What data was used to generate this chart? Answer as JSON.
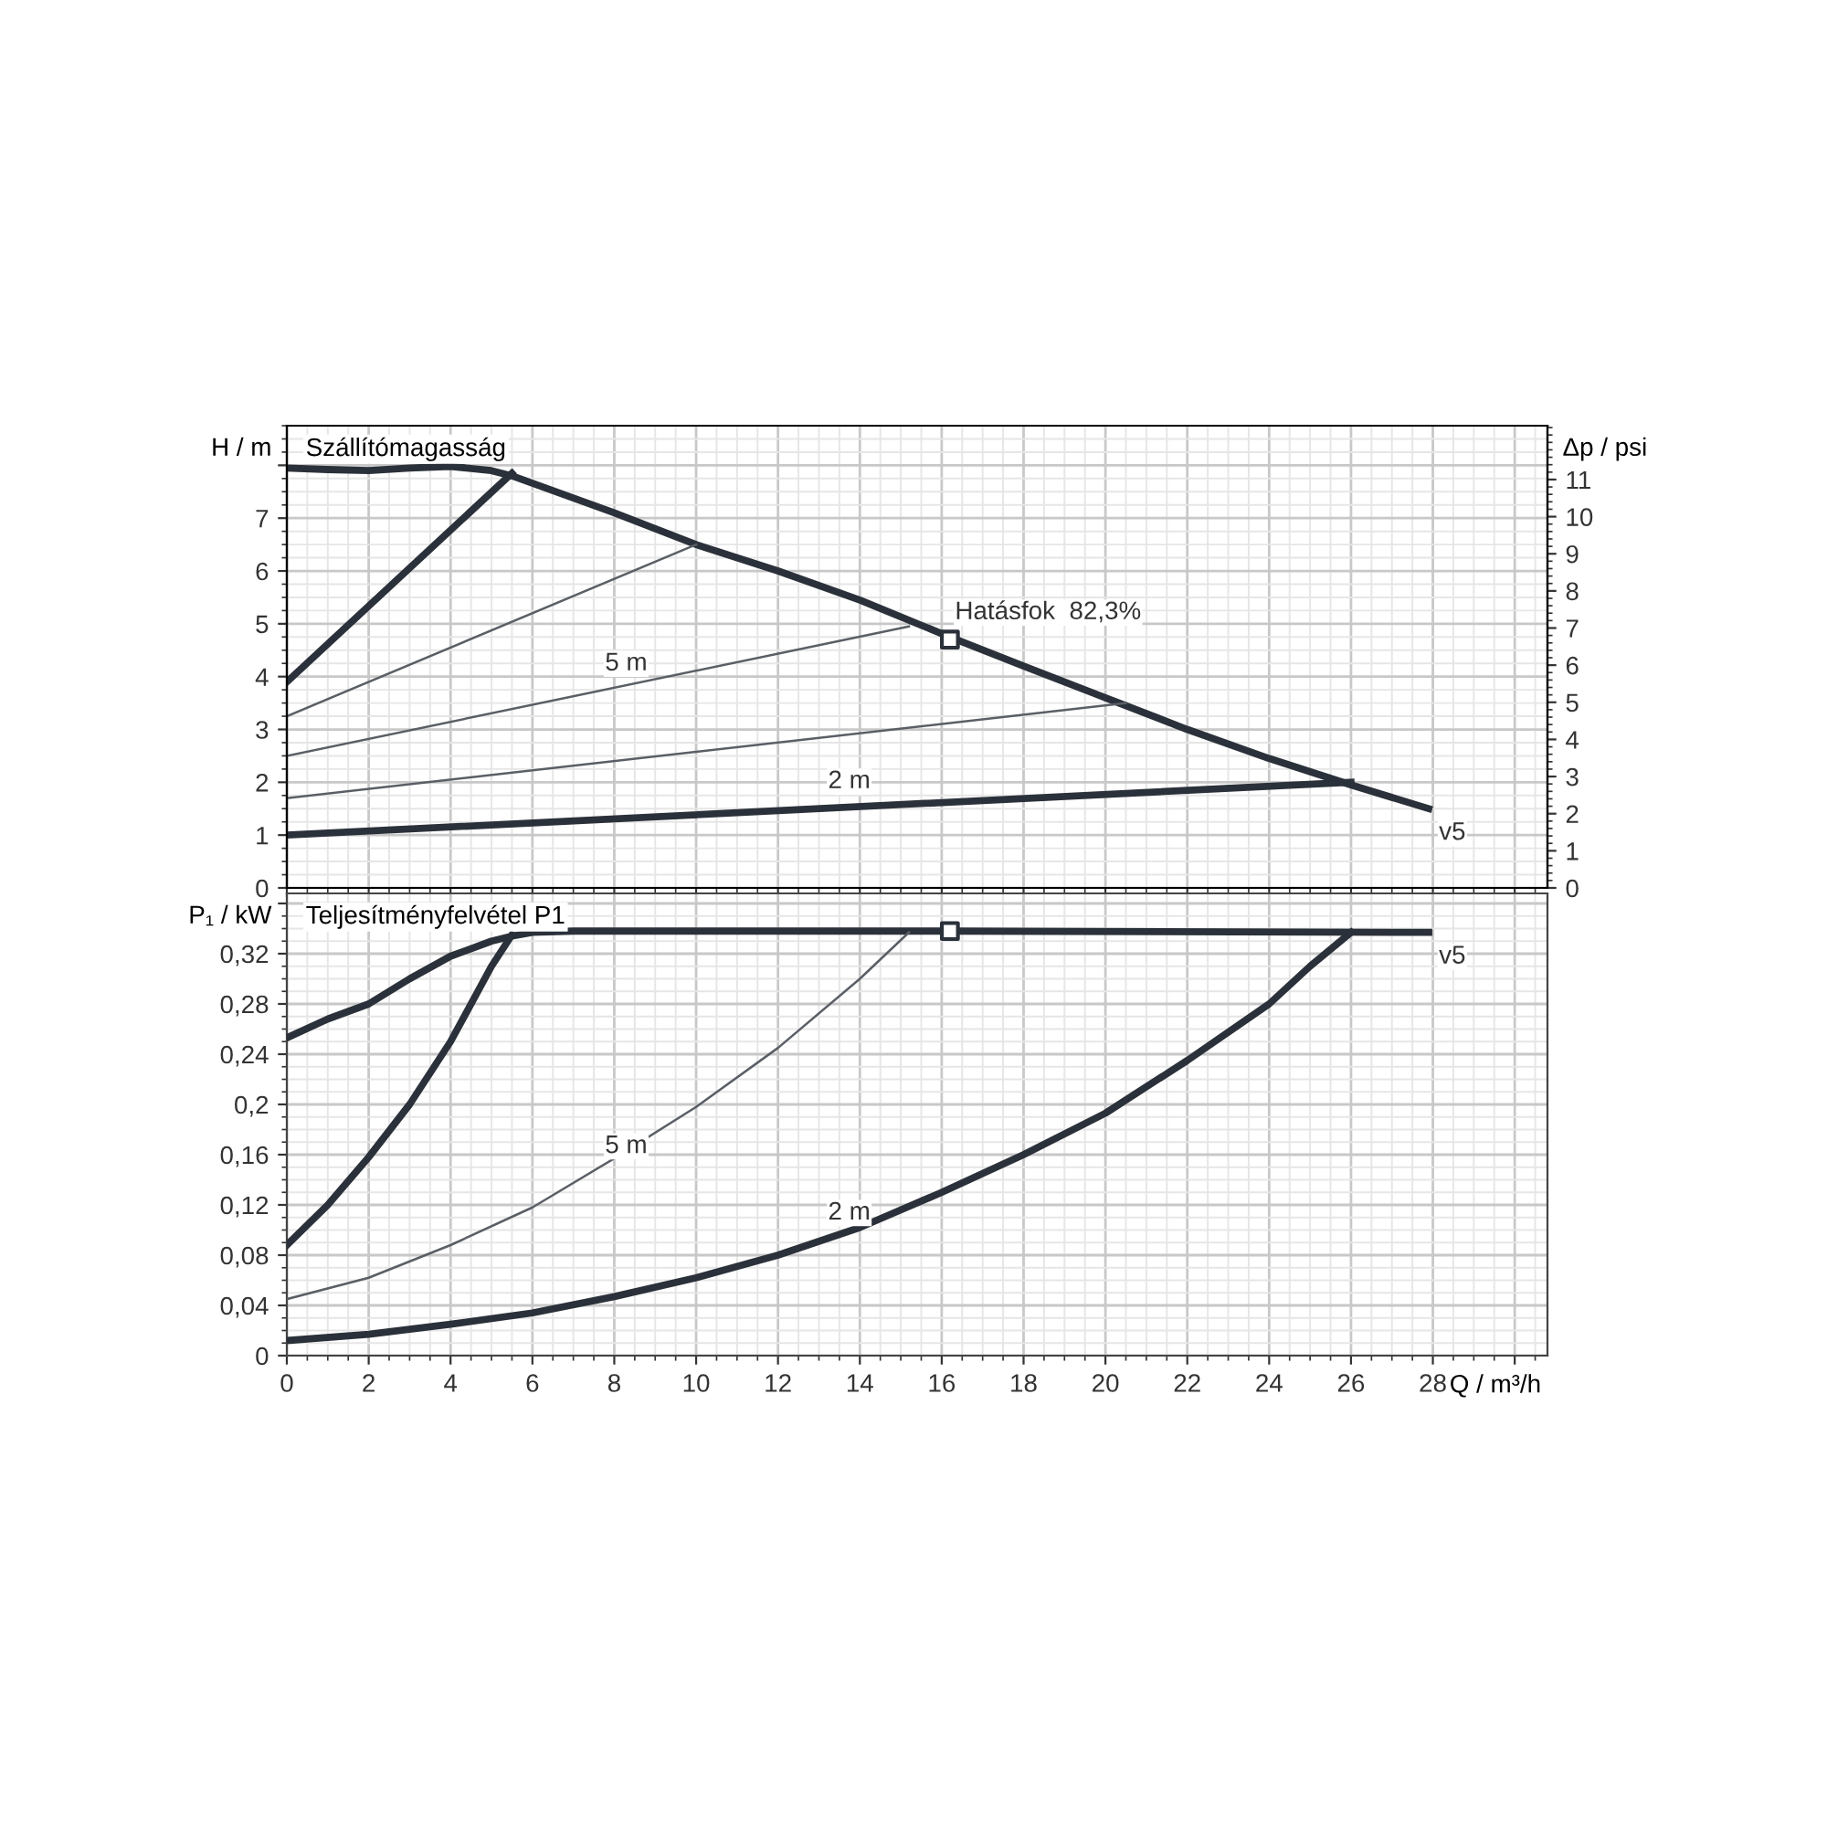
{
  "chart_data": [
    {
      "type": "line",
      "title": "Szállítómagasság",
      "ylabel": "H / m",
      "y2label": "Δp / psi",
      "grid": true,
      "tick_labels": "y",
      "xlim": [
        0,
        30.8
      ],
      "xticks": [
        0,
        2,
        4,
        6,
        8,
        10,
        12,
        14,
        16,
        18,
        20,
        22,
        24,
        26,
        28,
        {
          "value": 30,
          "label": null
        }
      ],
      "ylim": [
        0,
        8.75
      ],
      "yticks": [
        0,
        1,
        2,
        3,
        4,
        5,
        6,
        7,
        {
          "value": 8,
          "label": null
        }
      ],
      "y2lim": [
        0,
        12.45
      ],
      "y2ticks": [
        0,
        1,
        2,
        3,
        4,
        5,
        6,
        7,
        8,
        9,
        10,
        11
      ],
      "series": [
        {
          "color": "#2b313a",
          "x": [
            0,
            1,
            2,
            3,
            4,
            5,
            5.5,
            8,
            10,
            12,
            14,
            16.2,
            18,
            20,
            22,
            24,
            26,
            27.9
          ],
          "values": [
            7.95,
            7.92,
            7.9,
            7.95,
            7.98,
            7.9,
            7.8,
            7.1,
            6.5,
            6.0,
            5.45,
            4.75,
            4.2,
            3.6,
            3.0,
            2.45,
            1.95,
            1.5
          ]
        },
        {
          "color": "#2b313a",
          "x": [
            0,
            5.5
          ],
          "values": [
            3.9,
            7.85
          ]
        },
        {
          "color": "#5a5f66",
          "x": [
            0,
            10
          ],
          "values": [
            3.25,
            6.5
          ]
        },
        {
          "color": "#5a5f66",
          "x": [
            0,
            15.2
          ],
          "values": [
            2.5,
            4.95
          ]
        },
        {
          "color": "#5a5f66",
          "x": [
            0,
            20.5
          ],
          "values": [
            1.7,
            3.5
          ]
        },
        {
          "color": "#2b313a",
          "x": [
            0,
            26
          ],
          "values": [
            1.0,
            2.0
          ]
        },
        {
          "type": "scatter",
          "marker": "square",
          "color": "#2b313a",
          "x": [
            16.2
          ],
          "values": [
            4.7
          ]
        }
      ],
      "annotations": [
        {
          "text": "5 m",
          "x": 7.65,
          "y": 3.73
        },
        {
          "text": "2 m",
          "x": 13.1,
          "y": 1.5
        },
        {
          "text": "v5",
          "x": 27.9,
          "y": 1.5
        },
        {
          "text": "Hatásfok  82,3%",
          "x": 16.2,
          "y": 4.7
        }
      ]
    },
    {
      "type": "line",
      "title": "Teljesítményfelvétel P1",
      "ylabel": "P₁ / kW",
      "xlabel": "Q / m³/h",
      "grid": true,
      "xlim": [
        0,
        30.8
      ],
      "xticks": [
        0,
        2,
        4,
        6,
        8,
        10,
        12,
        14,
        16,
        18,
        20,
        22,
        24,
        26,
        28,
        {
          "value": 30,
          "label": null
        }
      ],
      "ylim": [
        0,
        0.368
      ],
      "yticks": [
        0,
        {
          "value": 0.04,
          "label": "0,04"
        },
        {
          "value": 0.08,
          "label": "0,08"
        },
        {
          "value": 0.12,
          "label": "0,12"
        },
        {
          "value": 0.16,
          "label": "0,16"
        },
        {
          "value": 0.2,
          "label": "0,2"
        },
        {
          "value": 0.24,
          "label": "0,24"
        },
        {
          "value": 0.28,
          "label": "0,28"
        },
        {
          "value": 0.32,
          "label": "0,32"
        },
        {
          "value": 0.36,
          "label": null
        }
      ],
      "series": [
        {
          "color": "#2b313a",
          "x": [
            0,
            1,
            2,
            3,
            4,
            5,
            5.5,
            6,
            7,
            8.3,
            16.2,
            27.9
          ],
          "values": [
            0.253,
            0.268,
            0.28,
            0.3,
            0.318,
            0.33,
            0.334,
            0.337,
            0.338,
            0.338,
            0.338,
            0.337
          ]
        },
        {
          "color": "#2b313a",
          "x": [
            0,
            1,
            2,
            3,
            4,
            5,
            5.5
          ],
          "values": [
            0.088,
            0.12,
            0.158,
            0.2,
            0.25,
            0.31,
            0.335
          ]
        },
        {
          "color": "#5a5f66",
          "x": [
            0,
            2,
            4,
            6,
            8,
            10,
            12,
            14,
            15.2
          ],
          "values": [
            0.045,
            0.062,
            0.088,
            0.118,
            0.157,
            0.198,
            0.245,
            0.3,
            0.337
          ]
        },
        {
          "color": "#2b313a",
          "x": [
            0,
            2,
            4,
            6,
            8,
            10,
            12,
            14,
            16,
            18,
            20,
            22,
            24,
            25,
            26
          ],
          "values": [
            0.012,
            0.017,
            0.025,
            0.034,
            0.047,
            0.062,
            0.08,
            0.102,
            0.13,
            0.16,
            0.193,
            0.235,
            0.28,
            0.31,
            0.337
          ]
        },
        {
          "type": "scatter",
          "marker": "square",
          "color": "#2b313a",
          "x": [
            16.2
          ],
          "values": [
            0.338
          ]
        }
      ],
      "annotations": [
        {
          "text": "5 m",
          "x": 7.65,
          "y": 0.145
        },
        {
          "text": "2 m",
          "x": 13.1,
          "y": 0.092
        },
        {
          "text": "v5",
          "x": 27.9,
          "y": 0.337
        }
      ]
    }
  ]
}
